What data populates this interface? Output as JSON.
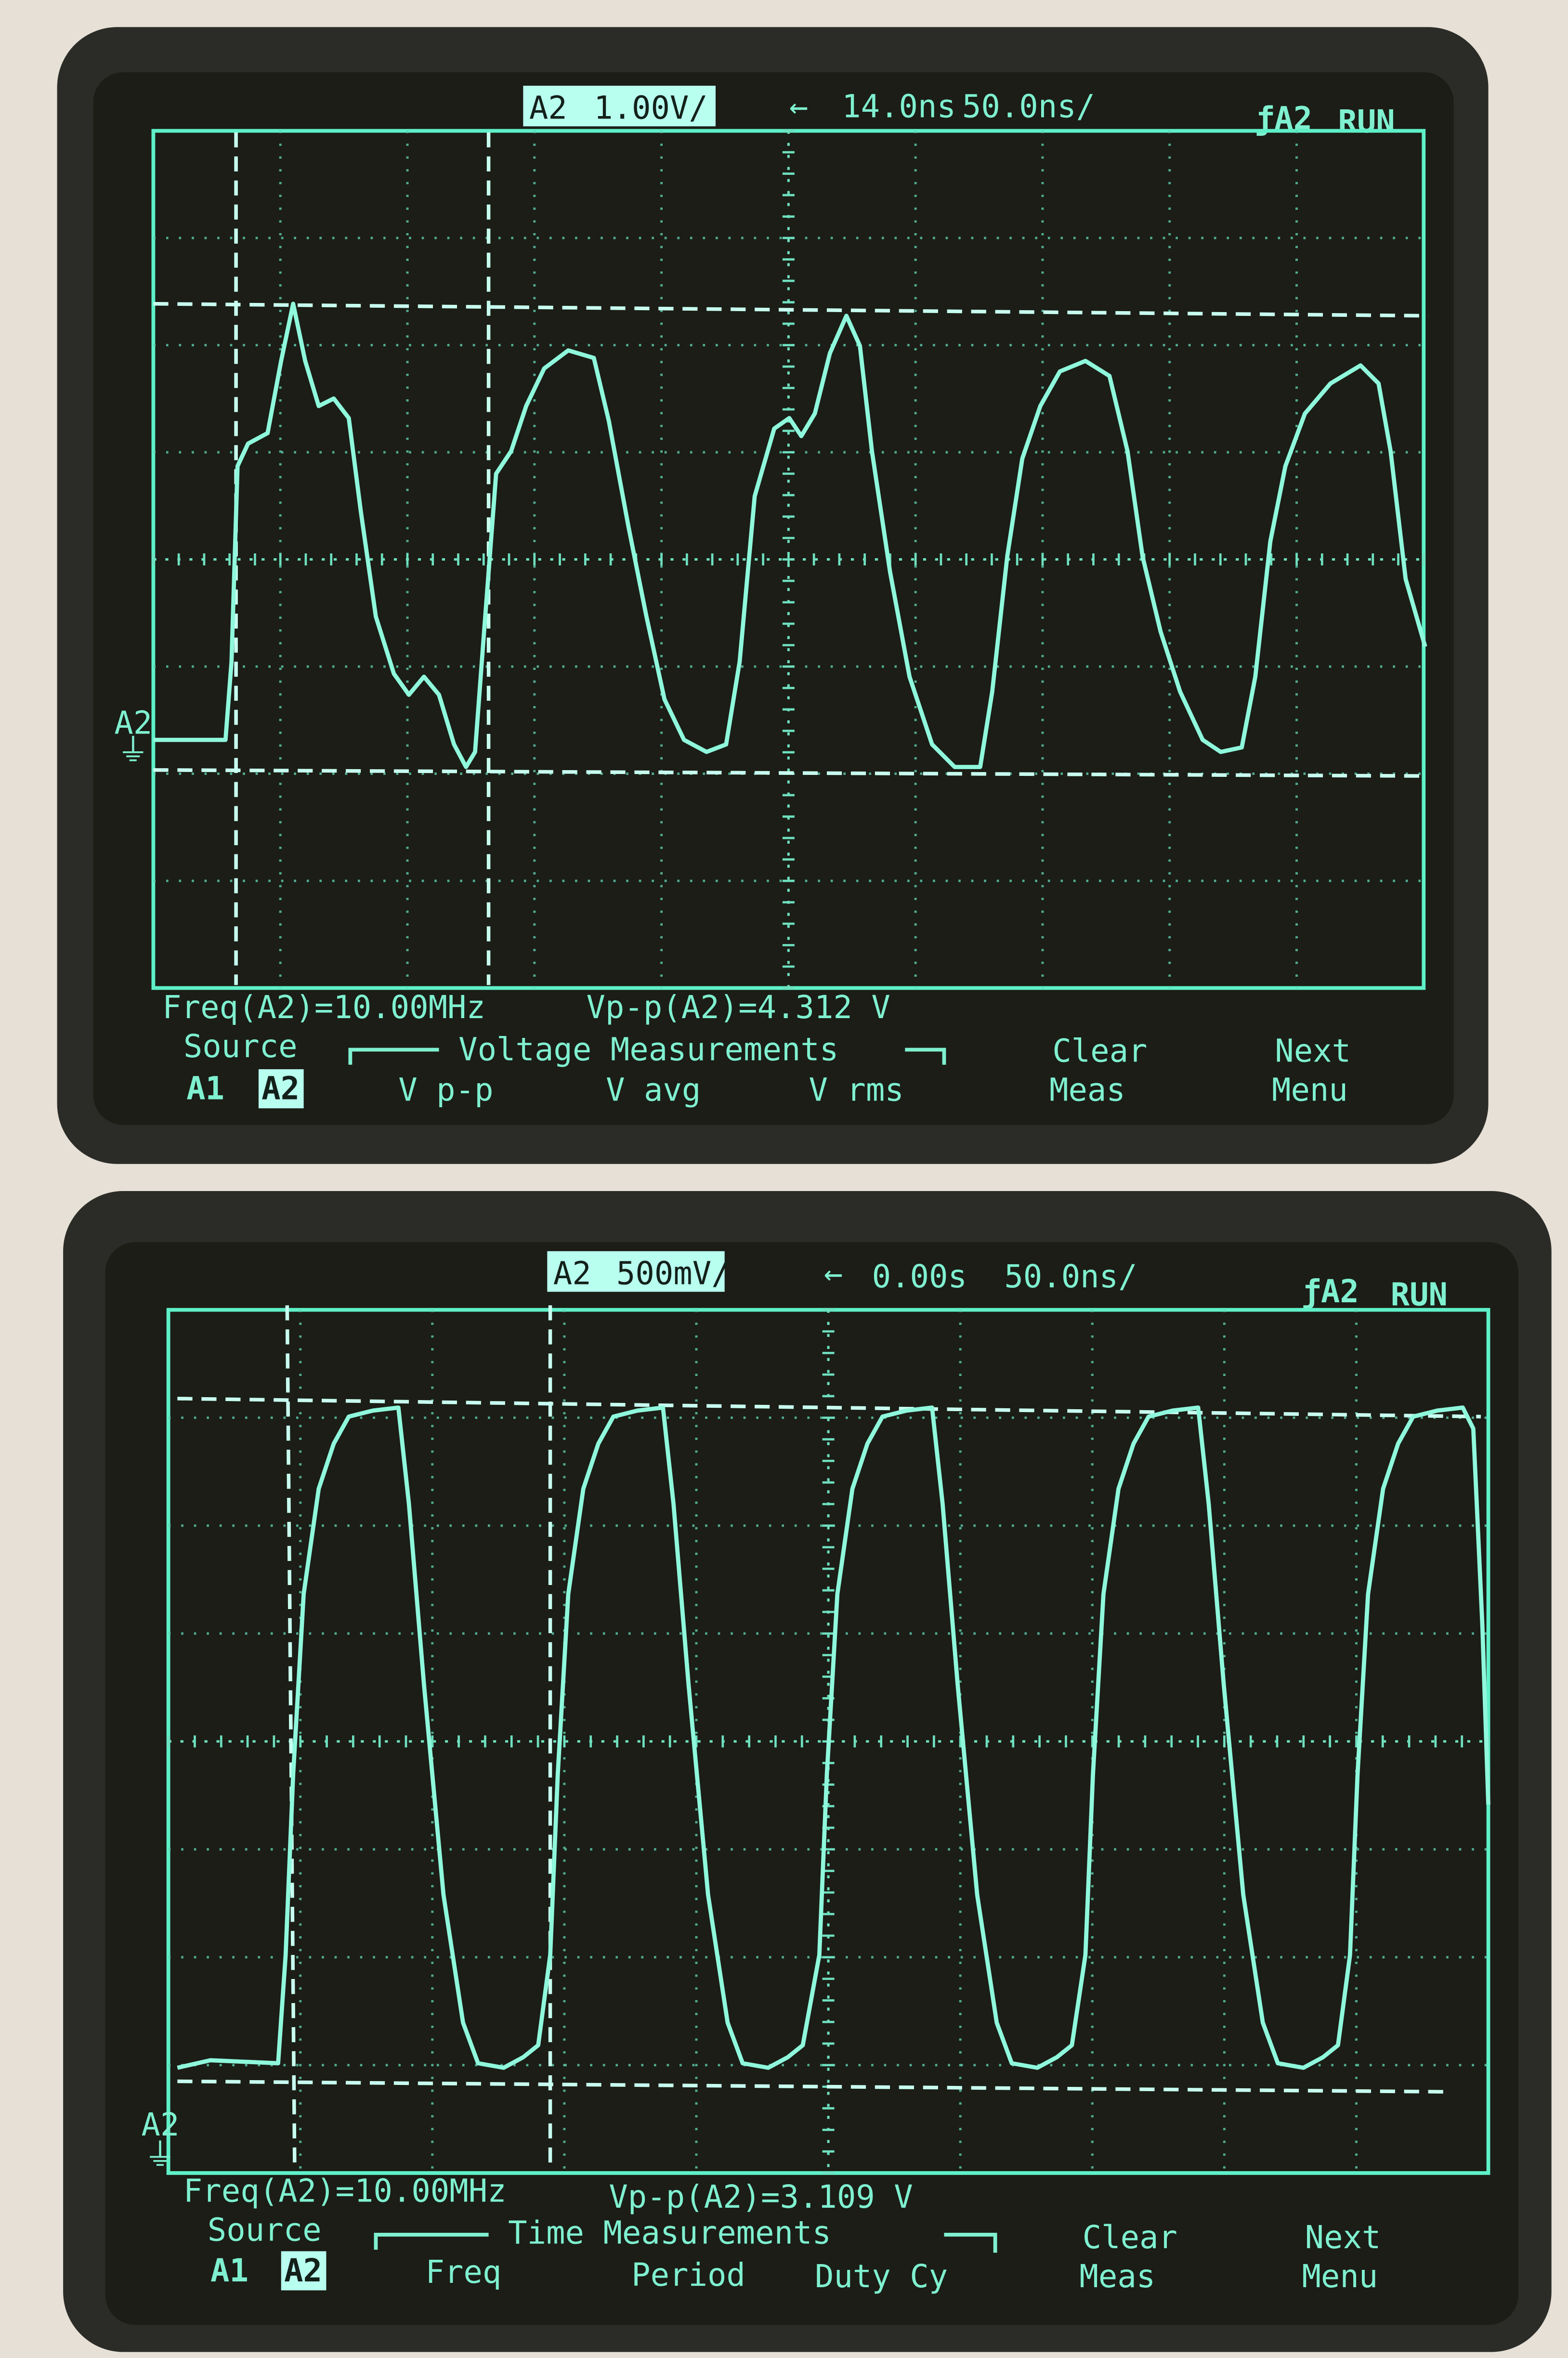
{
  "colors": {
    "trace": "#8ff8dc",
    "grid": "#5fcfb0",
    "screen": "#1b1d16",
    "bezel": "#2b2c27",
    "background": "#e6e0d6"
  },
  "top_scope": {
    "channel": "A2",
    "volts_per_div": "1.00V/",
    "delay": "14.0ns",
    "time_per_div": "50.0ns/",
    "trigger": "ƒA2",
    "run_state": "RUN",
    "ground_marker": "A2",
    "measurement_freq": "Freq(A2)=10.00MHz",
    "measurement_vpp": "Vp-p(A2)=4.312 V",
    "softkeys": {
      "source_label": "Source",
      "source_a1": "A1",
      "source_a2": "A2",
      "group_label": "Voltage Measurements",
      "key1": "V p-p",
      "key2": "V avg",
      "key3": "V rms",
      "clear_line1": "Clear",
      "clear_line2": "Meas",
      "next_line1": "Next",
      "next_line2": "Menu"
    }
  },
  "bottom_scope": {
    "channel": "A2",
    "volts_per_div": "500mV/",
    "delay": "0.00s",
    "time_per_div": "50.0ns/",
    "trigger": "ƒA2",
    "run_state": "RUN",
    "ground_marker": "A2",
    "measurement_freq": "Freq(A2)=10.00MHz",
    "measurement_vpp": "Vp-p(A2)=3.109 V",
    "softkeys": {
      "source_label": "Source",
      "source_a1": "A1",
      "source_a2": "A2",
      "group_label": "Time Measurements",
      "key1": "Freq",
      "key2": "Period",
      "key3": "Duty Cy",
      "clear_line1": "Clear",
      "clear_line2": "Meas",
      "next_line1": "Next",
      "next_line2": "Menu"
    }
  }
}
